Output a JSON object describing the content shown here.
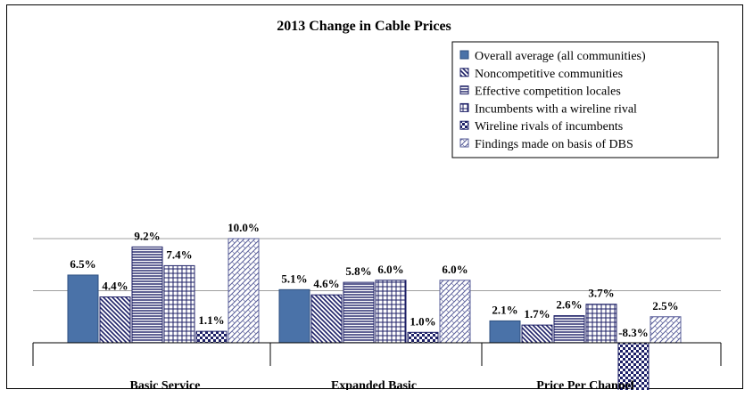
{
  "chart_data": {
    "type": "bar",
    "title": "2013 Change in Cable Prices",
    "xlabel": "",
    "ylabel": "",
    "ylim": [
      -10,
      12
    ],
    "grid": true,
    "legend_position": "top-right",
    "categories": [
      "Basic Service",
      "Expanded Basic",
      "Price Per Channel"
    ],
    "series": [
      {
        "name": "Overall average (all communities)",
        "values": [
          6.5,
          5.1,
          2.1
        ],
        "labels": [
          "6.5%",
          "5.1%",
          "2.1%"
        ],
        "pattern": "solid",
        "color": "#4a72a8"
      },
      {
        "name": "Noncompetitive communities",
        "values": [
          4.4,
          4.6,
          1.7
        ],
        "labels": [
          "4.4%",
          "4.6%",
          "1.7%"
        ],
        "pattern": "diag-down",
        "color": "#1c1f66"
      },
      {
        "name": "Effective competition locales",
        "values": [
          9.2,
          5.8,
          2.6
        ],
        "labels": [
          "9.2%",
          "5.8%",
          "2.6%"
        ],
        "pattern": "horizontal",
        "color": "#1c1f66"
      },
      {
        "name": "Incumbents with a wireline rival",
        "values": [
          7.4,
          6.0,
          3.7
        ],
        "labels": [
          "7.4%",
          "6.0%",
          "3.7%"
        ],
        "pattern": "grid",
        "color": "#1c1f66"
      },
      {
        "name": "Wireline rivals of incumbents",
        "values": [
          1.1,
          1.0,
          -8.3
        ],
        "labels": [
          "1.1%",
          "1.0%",
          "-8.3%"
        ],
        "pattern": "checker",
        "color": "#1c1f66"
      },
      {
        "name": "Findings made on basis of DBS",
        "values": [
          10.0,
          6.0,
          2.5
        ],
        "labels": [
          "10.0%",
          "6.0%",
          "2.5%"
        ],
        "pattern": "diag-up",
        "color": "#5a5f9a"
      }
    ]
  }
}
